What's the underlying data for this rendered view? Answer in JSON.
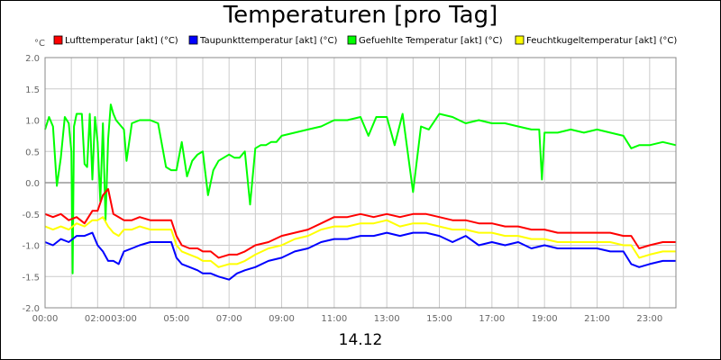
{
  "chart_data": {
    "type": "line",
    "title": "Temperaturen [pro Tag]",
    "date_label": "14.12",
    "ylabel": "°C",
    "xlabel": "",
    "ylim": [
      -2.0,
      2.0
    ],
    "xlim": [
      0,
      24
    ],
    "yticks": [
      "2.0",
      "1.5",
      "1.0",
      "0.5",
      "0.0",
      "-0.5",
      "-1.0",
      "-1.5",
      "-2.0"
    ],
    "yticks_values": [
      2.0,
      1.5,
      1.0,
      0.5,
      0.0,
      -0.5,
      -1.0,
      -1.5,
      -2.0
    ],
    "xticks": [
      "00:00",
      "02:00",
      "03:00",
      "05:00",
      "07:00",
      "09:00",
      "11:00",
      "13:00",
      "15:00",
      "17:00",
      "19:00",
      "21:00",
      "23:00"
    ],
    "xticks_values": [
      0,
      2,
      3,
      5,
      7,
      9,
      11,
      13,
      15,
      17,
      19,
      21,
      23
    ],
    "grid": true,
    "legend_position": "top",
    "series": [
      {
        "name": "Lufttemperatur [akt] (°C)",
        "color": "#ff0000",
        "x": [
          0,
          0.3,
          0.6,
          0.9,
          1.2,
          1.5,
          1.8,
          2.0,
          2.2,
          2.4,
          2.6,
          2.8,
          3.0,
          3.3,
          3.6,
          4.0,
          4.4,
          4.8,
          5.0,
          5.2,
          5.5,
          5.8,
          6.0,
          6.3,
          6.6,
          7.0,
          7.3,
          7.6,
          8.0,
          8.5,
          9.0,
          9.5,
          10.0,
          10.5,
          11.0,
          11.5,
          12.0,
          12.5,
          13.0,
          13.5,
          14.0,
          14.5,
          15.0,
          15.5,
          16.0,
          16.5,
          17.0,
          17.5,
          18.0,
          18.5,
          19.0,
          19.5,
          20.0,
          20.5,
          21.0,
          21.5,
          22.0,
          22.3,
          22.6,
          23.0,
          23.5,
          24.0
        ],
        "y": [
          -0.5,
          -0.55,
          -0.5,
          -0.6,
          -0.55,
          -0.65,
          -0.45,
          -0.45,
          -0.2,
          -0.1,
          -0.5,
          -0.55,
          -0.6,
          -0.6,
          -0.55,
          -0.6,
          -0.6,
          -0.6,
          -0.85,
          -1.0,
          -1.05,
          -1.05,
          -1.1,
          -1.1,
          -1.2,
          -1.15,
          -1.15,
          -1.1,
          -1.0,
          -0.95,
          -0.85,
          -0.8,
          -0.75,
          -0.65,
          -0.55,
          -0.55,
          -0.5,
          -0.55,
          -0.5,
          -0.55,
          -0.5,
          -0.5,
          -0.55,
          -0.6,
          -0.6,
          -0.65,
          -0.65,
          -0.7,
          -0.7,
          -0.75,
          -0.75,
          -0.8,
          -0.8,
          -0.8,
          -0.8,
          -0.8,
          -0.85,
          -0.85,
          -1.05,
          -1.0,
          -0.95,
          -0.95
        ]
      },
      {
        "name": "Taupunkttemperatur [akt] (°C)",
        "color": "#0000ff",
        "x": [
          0,
          0.3,
          0.6,
          0.9,
          1.2,
          1.5,
          1.8,
          2.0,
          2.2,
          2.4,
          2.6,
          2.8,
          3.0,
          3.3,
          3.6,
          4.0,
          4.4,
          4.8,
          5.0,
          5.2,
          5.5,
          5.8,
          6.0,
          6.3,
          6.6,
          7.0,
          7.3,
          7.6,
          8.0,
          8.5,
          9.0,
          9.5,
          10.0,
          10.5,
          11.0,
          11.5,
          12.0,
          12.5,
          13.0,
          13.5,
          14.0,
          14.5,
          15.0,
          15.5,
          16.0,
          16.5,
          17.0,
          17.5,
          18.0,
          18.5,
          19.0,
          19.5,
          20.0,
          20.5,
          21.0,
          21.5,
          22.0,
          22.3,
          22.6,
          23.0,
          23.5,
          24.0
        ],
        "y": [
          -0.95,
          -1.0,
          -0.9,
          -0.95,
          -0.85,
          -0.85,
          -0.8,
          -1.0,
          -1.1,
          -1.25,
          -1.25,
          -1.3,
          -1.1,
          -1.05,
          -1.0,
          -0.95,
          -0.95,
          -0.95,
          -1.2,
          -1.3,
          -1.35,
          -1.4,
          -1.45,
          -1.45,
          -1.5,
          -1.55,
          -1.45,
          -1.4,
          -1.35,
          -1.25,
          -1.2,
          -1.1,
          -1.05,
          -0.95,
          -0.9,
          -0.9,
          -0.85,
          -0.85,
          -0.8,
          -0.85,
          -0.8,
          -0.8,
          -0.85,
          -0.95,
          -0.85,
          -1.0,
          -0.95,
          -1.0,
          -0.95,
          -1.05,
          -1.0,
          -1.05,
          -1.05,
          -1.05,
          -1.05,
          -1.1,
          -1.1,
          -1.3,
          -1.35,
          -1.3,
          -1.25,
          -1.25
        ]
      },
      {
        "name": "Gefuehlte Temperatur [akt] (°C)",
        "color": "#00ff00",
        "x": [
          0,
          0.15,
          0.3,
          0.45,
          0.6,
          0.75,
          0.9,
          1.0,
          1.05,
          1.1,
          1.2,
          1.4,
          1.5,
          1.6,
          1.7,
          1.8,
          1.9,
          2.0,
          2.1,
          2.2,
          2.3,
          2.4,
          2.5,
          2.6,
          2.7,
          2.8,
          3.0,
          3.1,
          3.3,
          3.6,
          4.0,
          4.3,
          4.6,
          4.8,
          5.0,
          5.2,
          5.4,
          5.6,
          5.8,
          6.0,
          6.2,
          6.4,
          6.6,
          6.8,
          7.0,
          7.2,
          7.4,
          7.6,
          7.8,
          8.0,
          8.2,
          8.4,
          8.6,
          8.8,
          9.0,
          9.5,
          10.0,
          10.5,
          11.0,
          11.5,
          12.0,
          12.3,
          12.6,
          13.0,
          13.3,
          13.6,
          14.0,
          14.3,
          14.6,
          15.0,
          15.5,
          16.0,
          16.5,
          17.0,
          17.5,
          18.0,
          18.5,
          18.8,
          18.9,
          19.0,
          19.5,
          20.0,
          20.5,
          21.0,
          21.5,
          22.0,
          22.3,
          22.6,
          23.0,
          23.5,
          24.0
        ],
        "y": [
          0.85,
          1.05,
          0.9,
          -0.05,
          0.4,
          1.05,
          0.95,
          0.5,
          -1.45,
          0.9,
          1.1,
          1.1,
          0.3,
          0.25,
          1.1,
          0.05,
          1.05,
          0.65,
          -0.3,
          0.95,
          -0.6,
          0.7,
          1.25,
          1.1,
          1.0,
          0.95,
          0.85,
          0.35,
          0.95,
          1.0,
          1.0,
          0.95,
          0.25,
          0.2,
          0.2,
          0.65,
          0.1,
          0.35,
          0.45,
          0.5,
          -0.2,
          0.2,
          0.35,
          0.4,
          0.45,
          0.4,
          0.4,
          0.5,
          -0.35,
          0.55,
          0.6,
          0.6,
          0.65,
          0.65,
          0.75,
          0.8,
          0.85,
          0.9,
          1.0,
          1.0,
          1.05,
          0.75,
          1.05,
          1.05,
          0.6,
          1.1,
          -0.15,
          0.9,
          0.85,
          1.1,
          1.05,
          0.95,
          1.0,
          0.95,
          0.95,
          0.9,
          0.85,
          0.85,
          0.05,
          0.8,
          0.8,
          0.85,
          0.8,
          0.85,
          0.8,
          0.75,
          0.55,
          0.6,
          0.6,
          0.65,
          0.6
        ]
      },
      {
        "name": "Feuchtkugeltemperatur [akt] (°C)",
        "color": "#ffff00",
        "x": [
          0,
          0.3,
          0.6,
          0.9,
          1.2,
          1.5,
          1.8,
          2.0,
          2.2,
          2.4,
          2.6,
          2.8,
          3.0,
          3.3,
          3.6,
          4.0,
          4.4,
          4.8,
          5.0,
          5.2,
          5.5,
          5.8,
          6.0,
          6.3,
          6.6,
          7.0,
          7.3,
          7.6,
          8.0,
          8.5,
          9.0,
          9.5,
          10.0,
          10.5,
          11.0,
          11.5,
          12.0,
          12.5,
          13.0,
          13.5,
          14.0,
          14.5,
          15.0,
          15.5,
          16.0,
          16.5,
          17.0,
          17.5,
          18.0,
          18.5,
          19.0,
          19.5,
          20.0,
          20.5,
          21.0,
          21.5,
          22.0,
          22.3,
          22.6,
          23.0,
          23.5,
          24.0
        ],
        "y": [
          -0.7,
          -0.75,
          -0.7,
          -0.75,
          -0.65,
          -0.7,
          -0.6,
          -0.6,
          -0.55,
          -0.7,
          -0.8,
          -0.85,
          -0.75,
          -0.75,
          -0.7,
          -0.75,
          -0.75,
          -0.75,
          -1.0,
          -1.1,
          -1.15,
          -1.2,
          -1.25,
          -1.25,
          -1.35,
          -1.3,
          -1.3,
          -1.25,
          -1.15,
          -1.05,
          -1.0,
          -0.9,
          -0.85,
          -0.75,
          -0.7,
          -0.7,
          -0.65,
          -0.65,
          -0.6,
          -0.7,
          -0.65,
          -0.65,
          -0.7,
          -0.75,
          -0.75,
          -0.8,
          -0.8,
          -0.85,
          -0.85,
          -0.9,
          -0.9,
          -0.95,
          -0.95,
          -0.95,
          -0.95,
          -0.95,
          -1.0,
          -1.0,
          -1.2,
          -1.15,
          -1.1,
          -1.1
        ]
      }
    ]
  }
}
